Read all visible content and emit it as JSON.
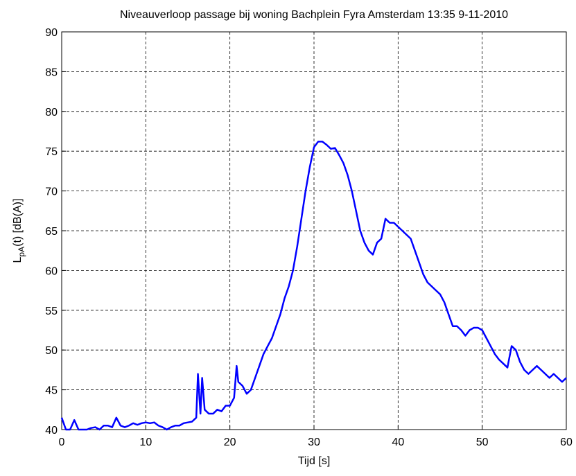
{
  "chart_data": {
    "type": "line",
    "title": "Niveauverloop passage bij woning Bachplein Fyra Amsterdam 13:35 9-11-2010",
    "xlabel": "Tijd [s]",
    "ylabel": {
      "main": "L",
      "sub": "pA",
      "rest": "(t) [dB(A)]"
    },
    "xlim": [
      0,
      60
    ],
    "xticks": [
      0,
      10,
      20,
      30,
      40,
      50,
      60
    ],
    "ylim": [
      40,
      90
    ],
    "yticks": [
      40,
      45,
      50,
      55,
      60,
      65,
      70,
      75,
      80,
      85,
      90
    ],
    "grid": true,
    "x": [
      0,
      0.5,
      1,
      1.5,
      2,
      2.5,
      3,
      3.5,
      4,
      4.5,
      5,
      5.5,
      6,
      6.5,
      7,
      7.5,
      8,
      8.5,
      9,
      9.5,
      10,
      10.5,
      11,
      11.5,
      12,
      12.5,
      13,
      13.5,
      14,
      14.5,
      15,
      15.5,
      16,
      16.2,
      16.5,
      16.7,
      17,
      17.5,
      18,
      18.5,
      19,
      19.5,
      20,
      20.5,
      20.8,
      21,
      21.5,
      22,
      22.5,
      23,
      23.5,
      24,
      24.5,
      25,
      25.5,
      26,
      26.5,
      27,
      27.5,
      28,
      28.5,
      29,
      29.5,
      30,
      30.5,
      31,
      31.5,
      32,
      32.5,
      33,
      33.5,
      34,
      34.5,
      35,
      35.5,
      36,
      36.5,
      37,
      37.5,
      38,
      38.5,
      39,
      39.5,
      40,
      40.5,
      41,
      41.5,
      42,
      42.5,
      43,
      43.5,
      44,
      44.5,
      45,
      45.5,
      46,
      46.5,
      47,
      47.5,
      48,
      48.5,
      49,
      49.5,
      50,
      50.5,
      51,
      51.5,
      52,
      52.5,
      53,
      53.5,
      54,
      54.5,
      55,
      55.5,
      56,
      56.5,
      57,
      57.5,
      58,
      58.5,
      59,
      59.5,
      60
    ],
    "series": [
      {
        "name": "LpA",
        "color": "#0000ff",
        "values": [
          41.5,
          40,
          40,
          41.2,
          40,
          40,
          40,
          40.2,
          40.3,
          40,
          40.5,
          40.5,
          40.3,
          41.5,
          40.5,
          40.3,
          40.5,
          40.8,
          40.6,
          40.8,
          40.9,
          40.8,
          40.9,
          40.5,
          40.3,
          40,
          40.3,
          40.5,
          40.5,
          40.8,
          40.9,
          41,
          41.5,
          47,
          42,
          46.5,
          42.5,
          42,
          42,
          42.5,
          42.3,
          43,
          43,
          44,
          48,
          46,
          45.5,
          44.5,
          45,
          46.5,
          48,
          49.5,
          50.5,
          51.5,
          53,
          54.5,
          56.5,
          58,
          60,
          63,
          66.5,
          70,
          73,
          75.5,
          76.2,
          76.2,
          75.8,
          75.3,
          75.4,
          74.5,
          73.5,
          72,
          70,
          67.5,
          65,
          63.5,
          62.5,
          62,
          63.5,
          64,
          66.5,
          66,
          66,
          65.5,
          65,
          64.5,
          64,
          62.5,
          61,
          59.5,
          58.5,
          58,
          57.5,
          57,
          56,
          54.5,
          53,
          53,
          52.5,
          51.8,
          52.5,
          52.8,
          52.8,
          52.5,
          51.5,
          50.5,
          49.5,
          48.8,
          48.3,
          47.8,
          50.5,
          50,
          48.5,
          47.5,
          47,
          47.5,
          48,
          47.5,
          47,
          46.5,
          47,
          46.5,
          46,
          46.5
        ]
      }
    ]
  }
}
